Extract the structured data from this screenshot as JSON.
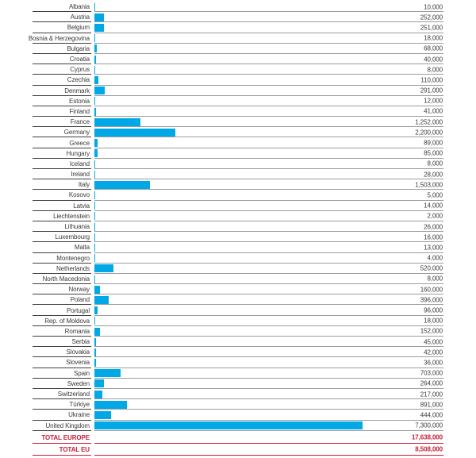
{
  "chart_data": {
    "type": "bar",
    "orientation": "horizontal",
    "categories": [
      "Albania",
      "Austria",
      "Belgium",
      "Bosnia & Herzegovina",
      "Bulgaria",
      "Croatia",
      "Cyprus",
      "Czechia",
      "Denmark",
      "Estonia",
      "Finland",
      "France",
      "Germany",
      "Greece",
      "Hungary",
      "Iceland",
      "Ireland",
      "Italy",
      "Kosovo",
      "Latvia",
      "Liechtenstein",
      "Lithuania",
      "Luxembourg",
      "Malta",
      "Montenegro",
      "Netherlands",
      "North Macedonia",
      "Norway",
      "Poland",
      "Portugal",
      "Rep. of Moldova",
      "Romania",
      "Serbia",
      "Slovakia",
      "Slovenia",
      "Spain",
      "Sweden",
      "Switzerland",
      "Türkiye",
      "Ukraine",
      "United Kingdom"
    ],
    "values": [
      10000,
      252000,
      251000,
      18000,
      68000,
      40000,
      8000,
      110000,
      291000,
      12000,
      41000,
      1252000,
      2200000,
      89000,
      85000,
      8000,
      28000,
      1503000,
      5000,
      14000,
      2000,
      26000,
      16000,
      13000,
      4000,
      520000,
      8000,
      160000,
      396000,
      96000,
      18000,
      152000,
      45000,
      42000,
      36000,
      703000,
      264000,
      217000,
      891000,
      444000,
      7300000
    ],
    "totals": [
      {
        "label": "TOTAL EUROPE",
        "value": 17638000
      },
      {
        "label": "TOTAL EU",
        "value": 8508000
      }
    ],
    "xlim": [
      0,
      9500000
    ],
    "grid": "per-row horizontal separator lines, no axis ticks",
    "legend": "none",
    "value_label_format": "thousands-separated, right-aligned",
    "colors": {
      "bar": "#00a9e6",
      "separator_label": "#3e3e3d",
      "separator_value": "#9c9c9c",
      "text": "#3a3a39",
      "total": "#c5203a"
    }
  }
}
